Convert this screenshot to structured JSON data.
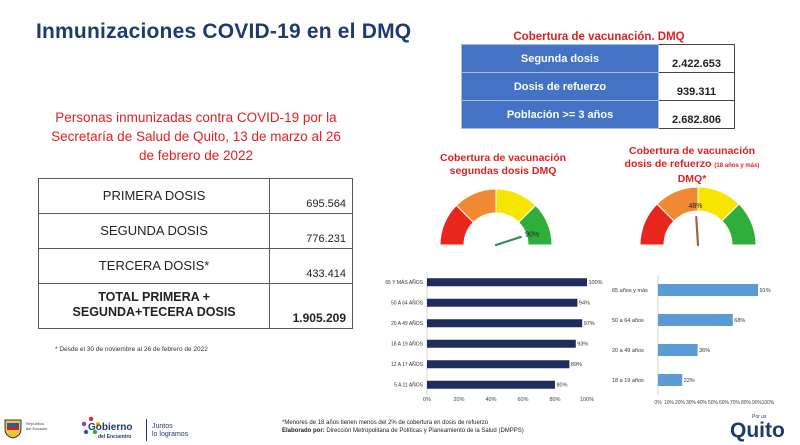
{
  "header": {
    "title": "Inmunizaciones COVID-19 en el DMQ"
  },
  "subtitle": "Personas inmunizadas contra COVID-19 por la Secretaría de Salud de Quito, 13 de marzo al 26 de febrero de 2022",
  "dosis_table": {
    "rows": [
      {
        "label": "PRIMERA DOSIS",
        "value": "695.564"
      },
      {
        "label": "SEGUNDA DOSIS",
        "value": "776.231"
      },
      {
        "label": "TERCERA DOSIS*",
        "value": "433.414"
      }
    ],
    "total_label_line1": "TOTAL PRIMERA +",
    "total_label_line2": "SEGUNDA+TECERA DOSIS",
    "total_value": "1.905.209"
  },
  "footnote_left": "* Desde el  30 de noviembre al 26 de febrero de 2022",
  "cobertura_table": {
    "title": "Cobertura de vacunación. DMQ",
    "rows": [
      {
        "label": "Segunda dosis",
        "value": "2.422.653"
      },
      {
        "label": "Dosis de refuerzo",
        "value": "939.311"
      },
      {
        "label": "Población >= 3 años",
        "value": "2.682.806"
      }
    ]
  },
  "gauge1": {
    "title_line1": "Cobertura de vacunación",
    "title_line2": "segundas dosis DMQ",
    "value": 90,
    "label": "90%"
  },
  "gauge2": {
    "title_line1": "Cobertura de vacunación",
    "title_line2": "dosis de refuerzo ",
    "title_small": "(18 años y más)",
    "title_line3": "DMQ*",
    "value": 48,
    "label": "48%"
  },
  "gauge_colors": [
    "#e8261c",
    "#f08a32",
    "#f7e400",
    "#2fae3b"
  ],
  "chart_data": [
    {
      "type": "bar",
      "orientation": "horizontal",
      "categories": [
        "65 Y MÁS AÑOS",
        "50 A 64 AÑOS",
        "20 A 49 AÑOS",
        "18 A 19 AÑOS",
        "12 A 17 AÑOS",
        "5 A 11 AÑOS"
      ],
      "values": [
        100,
        94,
        97,
        93,
        89,
        80
      ],
      "value_labels": [
        "100%",
        "94%",
        "97%",
        "93%",
        "89%",
        "80%"
      ],
      "xlim": [
        0,
        100
      ],
      "xticks": [
        "0%",
        "20%",
        "40%",
        "60%",
        "80%",
        "100%"
      ],
      "color": "#1f2d5c"
    },
    {
      "type": "bar",
      "orientation": "horizontal",
      "categories": [
        "65 años y más",
        "50 a 64 años",
        "20 a 49 años",
        "18 a 19 años"
      ],
      "values": [
        91,
        68,
        36,
        22
      ],
      "value_labels": [
        "91%",
        "68%",
        "36%",
        "22%"
      ],
      "xlim": [
        0,
        100
      ],
      "xticks": [
        "0%",
        "10%",
        "20%",
        "30%",
        "40%",
        "50%",
        "60%",
        "70%",
        "80%",
        "90%",
        "100%"
      ],
      "color": "#5b9bd5"
    }
  ],
  "footnote_right": {
    "line1": "*Menores de 18 años tienen menos del 2% de cobertura en dosis de refuerzo",
    "line2_bold": "Elaborado por: ",
    "line2_rest": "Dirección Metropolitana de Políticas y Planeamiento de la Salud (DMPPS)"
  },
  "logos": {
    "republica_line1": "República",
    "republica_line2": "del Ecuador",
    "gobierno": "Gobierno",
    "gobierno_sub": "del Encuentro",
    "juntos_line1": "Juntos",
    "juntos_line2": "lo logramos",
    "quito_small": "Por us",
    "quito": "Quito"
  }
}
